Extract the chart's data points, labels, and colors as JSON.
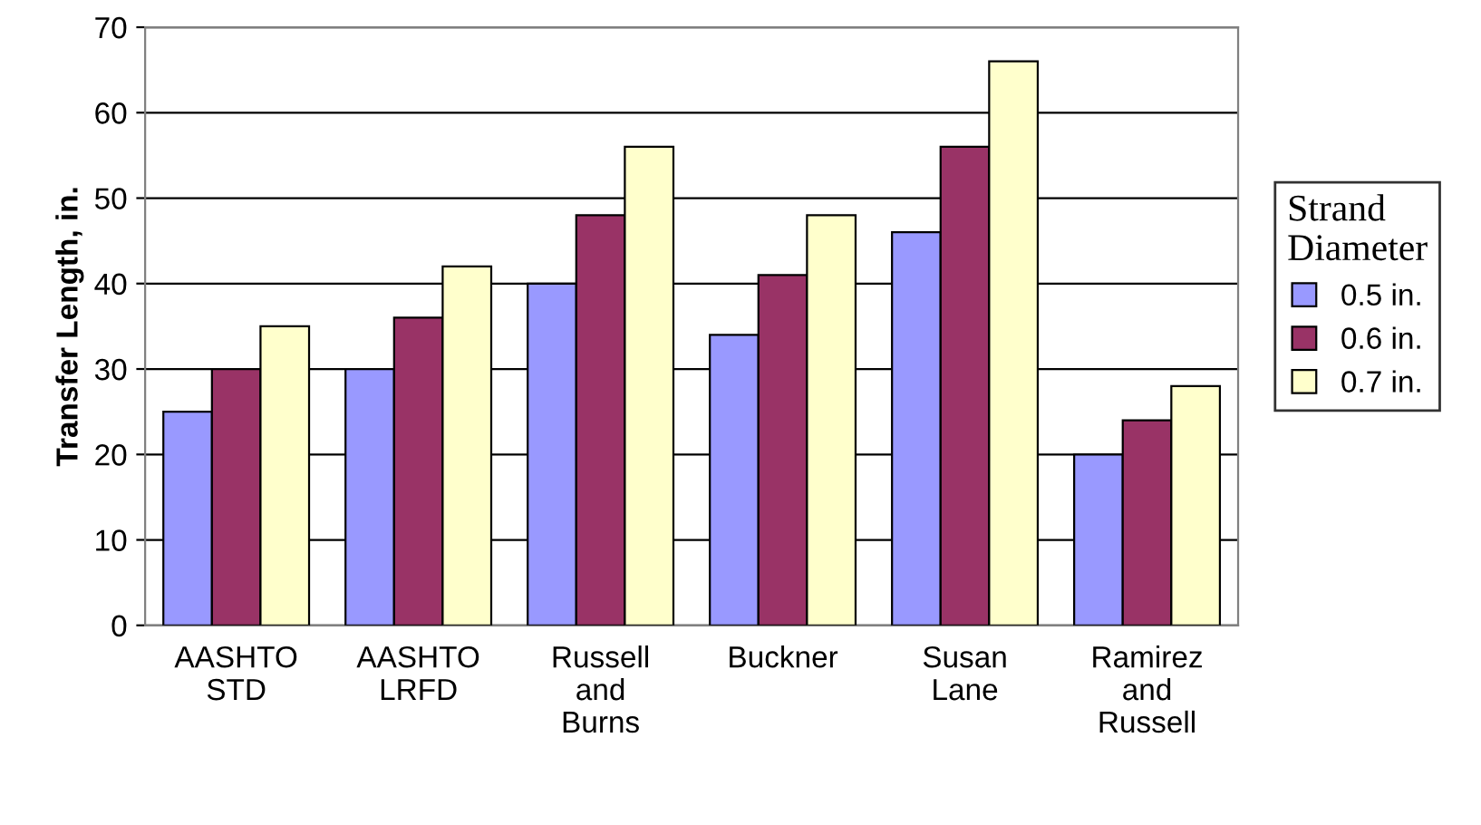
{
  "chart_data": {
    "type": "bar",
    "ylabel": "Transfer Length, in.",
    "legend_title": "Strand\nDiameter",
    "categories": [
      "AASHTO\nSTD",
      "AASHTO\nLRFD",
      "Russell\nand\nBurns",
      "Buckner",
      "Susan\nLane",
      "Ramirez\nand\nRussell"
    ],
    "series": [
      {
        "name": "0.5 in.",
        "color": "#9999ff",
        "values": [
          25,
          30,
          40,
          34,
          46,
          20
        ]
      },
      {
        "name": "0.6 in.",
        "color": "#993366",
        "values": [
          30,
          36,
          48,
          41,
          56,
          24
        ]
      },
      {
        "name": "0.7 in.",
        "color": "#ffffcc",
        "values": [
          35,
          42,
          56,
          48,
          66,
          28
        ]
      }
    ],
    "ylim": [
      0,
      70
    ],
    "yticks": [
      0,
      10,
      20,
      30,
      40,
      50,
      60,
      70
    ],
    "grid": "y",
    "legend": "right"
  }
}
